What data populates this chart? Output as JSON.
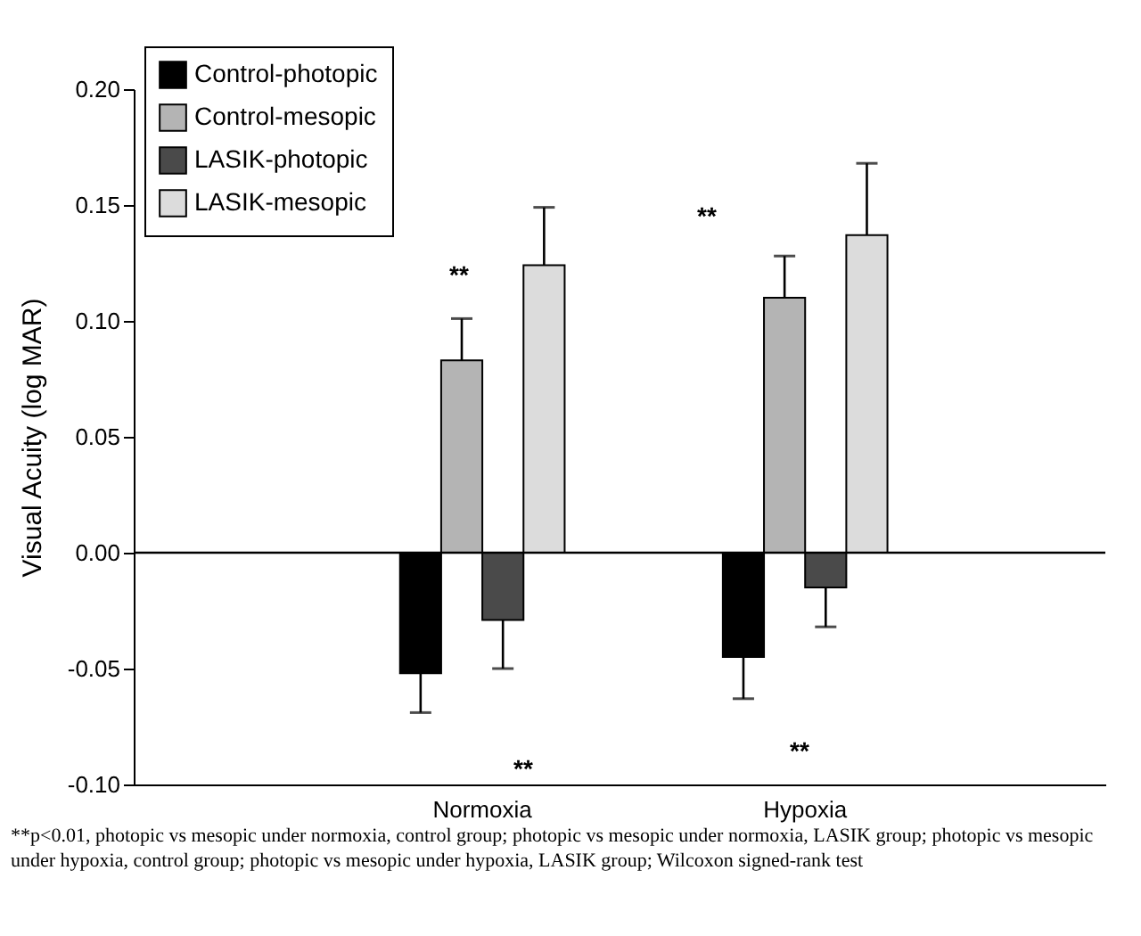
{
  "chart_data": {
    "type": "bar",
    "ylabel": "Visual Acuity (log MAR)",
    "categories": [
      "Normoxia",
      "Hypoxia"
    ],
    "series": [
      {
        "name": "Control-photopic",
        "color": "#000000",
        "values": [
          -0.052,
          -0.045
        ],
        "errors": [
          [
            -0.069,
            -0.052
          ],
          [
            -0.063,
            -0.045
          ]
        ]
      },
      {
        "name": "Control-mesopic",
        "color": "#b4b4b4",
        "values": [
          0.083,
          0.11
        ],
        "errors": [
          [
            0.083,
            0.101
          ],
          [
            0.11,
            0.128
          ]
        ]
      },
      {
        "name": "LASIK-photopic",
        "color": "#4a4a4a",
        "values": [
          -0.029,
          -0.015
        ],
        "errors": [
          [
            -0.05,
            -0.029
          ],
          [
            -0.032,
            -0.015
          ]
        ]
      },
      {
        "name": "LASIK-mesopic",
        "color": "#dcdcdc",
        "values": [
          0.124,
          0.137
        ],
        "errors": [
          [
            0.124,
            0.149
          ],
          [
            0.137,
            0.168
          ]
        ]
      }
    ],
    "ylim": [
      -0.1,
      0.2
    ],
    "yticks": [
      {
        "value": -0.1,
        "label": "-0.10"
      },
      {
        "value": -0.05,
        "label": "-0.05"
      },
      {
        "value": 0,
        "label": "0.00"
      },
      {
        "value": 0.05,
        "label": "0.05"
      },
      {
        "value": 0.1,
        "label": "0.10"
      },
      {
        "value": 0.15,
        "label": "0.15"
      },
      {
        "value": 0.2,
        "label": "0.20"
      }
    ],
    "ref_lines": [
      {
        "axis": "y",
        "value": 0,
        "color": "#000000"
      }
    ],
    "legend": "top left",
    "grid": false,
    "annotations": [
      "**",
      "**",
      "**",
      "**",
      "**p<0.01, photopic vs mesopic under normoxia, control group; photopic vs mesopic under normoxia, LASIK group; photopic vs mesopic under hypoxia, control group; photopic vs mesopic under hypoxia, LASIK group; Wilcoxon signed-rank test"
    ]
  }
}
